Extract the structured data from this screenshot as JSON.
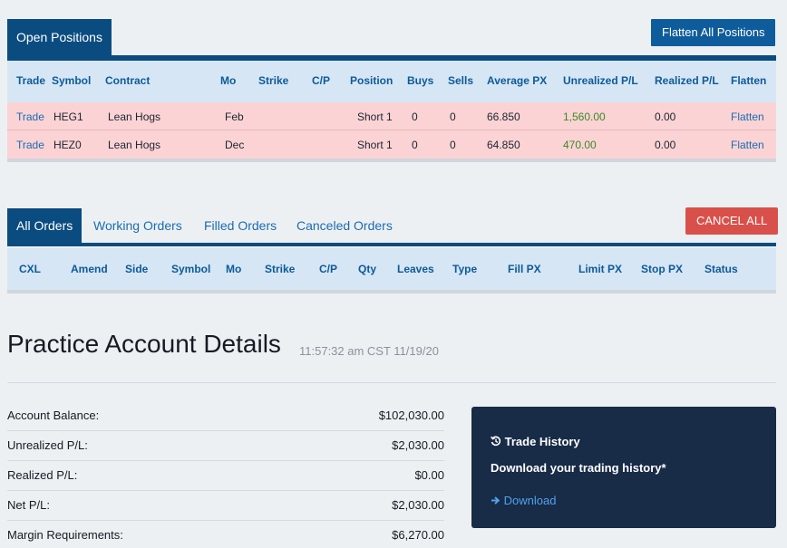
{
  "positions": {
    "tab_label": "Open Positions",
    "flatten_all_label": "Flatten All Positions",
    "columns": [
      "Trade",
      "Symbol",
      "Contract",
      "Mo",
      "Strike",
      "C/P",
      "Position",
      "Buys",
      "Sells",
      "Average PX",
      "Unrealized P/L",
      "Realized P/L",
      "Flatten"
    ],
    "rows": [
      {
        "trade": "Trade",
        "symbol": "HEG1",
        "contract": "Lean Hogs",
        "mo": "Feb",
        "strike": "",
        "cp": "",
        "position": "Short 1",
        "buys": "0",
        "sells": "0",
        "avg_px": "66.850",
        "unrealized": "1,560.00",
        "realized": "0.00",
        "flatten": "Flatten"
      },
      {
        "trade": "Trade",
        "symbol": "HEZ0",
        "contract": "Lean Hogs",
        "mo": "Dec",
        "strike": "",
        "cp": "",
        "position": "Short 1",
        "buys": "0",
        "sells": "0",
        "avg_px": "64.850",
        "unrealized": "470.00",
        "realized": "0.00",
        "flatten": "Flatten"
      }
    ]
  },
  "orders": {
    "tabs": [
      "All Orders",
      "Working Orders",
      "Filled Orders",
      "Canceled Orders"
    ],
    "cancel_all_label": "CANCEL ALL",
    "columns": [
      "CXL",
      "Amend",
      "Side",
      "Symbol",
      "Mo",
      "Strike",
      "C/P",
      "Qty",
      "Leaves",
      "Type",
      "Fill PX",
      "Limit PX",
      "Stop PX",
      "Status"
    ]
  },
  "account": {
    "title": "Practice Account Details",
    "timestamp": "11:57:32 am CST 11/19/20",
    "rows": [
      {
        "label": "Account Balance:",
        "value": "$102,030.00"
      },
      {
        "label": "Unrealized P/L:",
        "value": "$2,030.00"
      },
      {
        "label": "Realized P/L:",
        "value": "$0.00"
      },
      {
        "label": "Net P/L:",
        "value": "$2,030.00"
      },
      {
        "label": "Margin Requirements:",
        "value": "$6,270.00"
      }
    ]
  },
  "trade_history": {
    "title": "Trade History",
    "description": "Download your trading history*",
    "download_label": "Download",
    "title_icon": "history-icon",
    "download_icon": "arrow-right-icon"
  },
  "colors": {
    "nav_blue": "#0b4c80",
    "button_blue": "#0e5c9b",
    "cancel_red": "#d9504a",
    "row_pink": "#fbd3d5",
    "header_light_blue": "#d6e6f4",
    "panel_navy": "#182b47",
    "profit_green": "#3a8a22"
  }
}
